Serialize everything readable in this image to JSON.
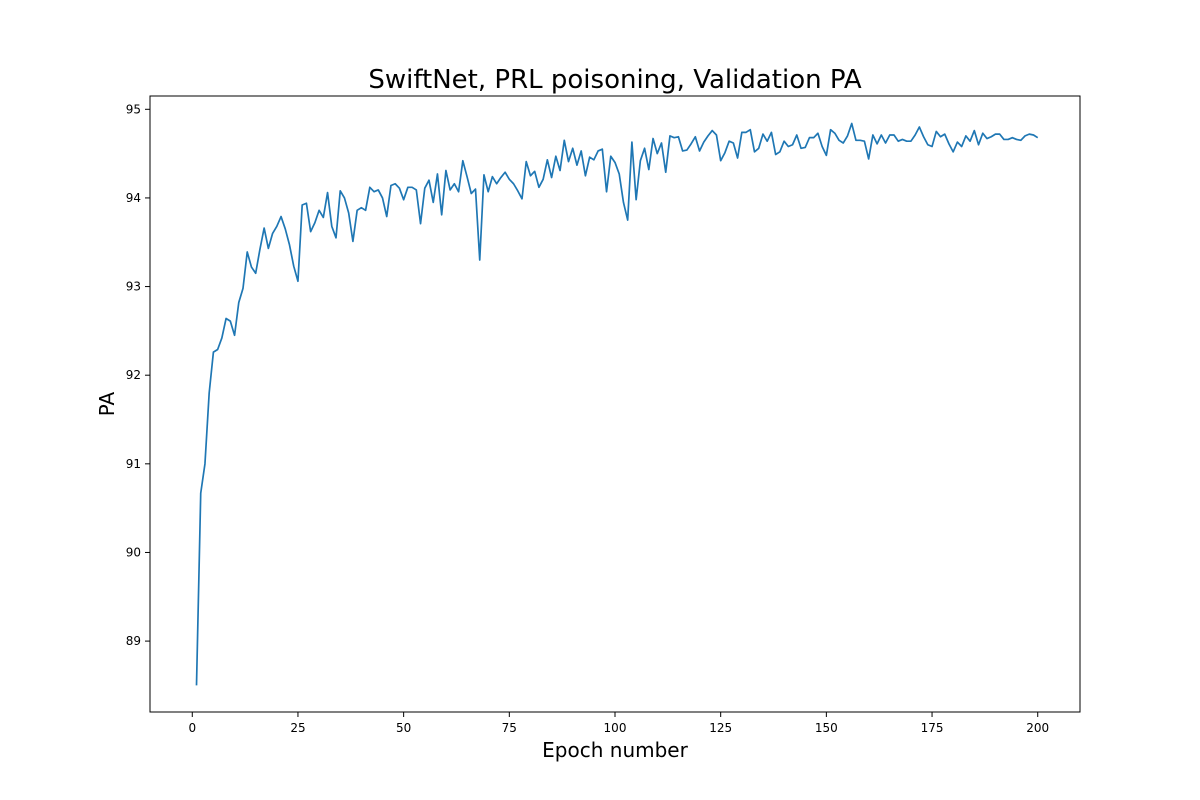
{
  "chart_data": {
    "type": "line",
    "title": "SwiftNet, PRL poisoning, Validation PA",
    "xlabel": "Epoch number",
    "ylabel": "PA",
    "xlim": [
      -10,
      210
    ],
    "ylim": [
      88.2,
      95.15
    ],
    "xticks": [
      0,
      25,
      50,
      75,
      100,
      125,
      150,
      175,
      200
    ],
    "yticks": [
      89,
      90,
      91,
      92,
      93,
      94,
      95
    ],
    "grid": false,
    "line_color": "#1f77b4",
    "series": [
      {
        "x": [
          1,
          2,
          3,
          4,
          5,
          6,
          7,
          8,
          9,
          10,
          11,
          12,
          13,
          14,
          15,
          16,
          17,
          18,
          19,
          20,
          21,
          22,
          23,
          24,
          25,
          26,
          27,
          28,
          29,
          30,
          31,
          32,
          33,
          34,
          35,
          36,
          37,
          38,
          39,
          40,
          41,
          42,
          43,
          44,
          45,
          46,
          47,
          48,
          49,
          50,
          51,
          52,
          53,
          54,
          55,
          56,
          57,
          58,
          59,
          60,
          61,
          62,
          63,
          64,
          65,
          66,
          67,
          68,
          69,
          70,
          71,
          72,
          73,
          74,
          75,
          76,
          77,
          78,
          79,
          80,
          81,
          82,
          83,
          84,
          85,
          86,
          87,
          88,
          89,
          90,
          91,
          92,
          93,
          94,
          95,
          96,
          97,
          98,
          99,
          100,
          101,
          102,
          103,
          104,
          105,
          106,
          107,
          108,
          109,
          110,
          111,
          112,
          113,
          114,
          115,
          116,
          117,
          118,
          119,
          120,
          121,
          122,
          123,
          124,
          125,
          126,
          127,
          128,
          129,
          130,
          131,
          132,
          133,
          134,
          135,
          136,
          137,
          138,
          139,
          140,
          141,
          142,
          143,
          144,
          145,
          146,
          147,
          148,
          149,
          150,
          151,
          152,
          153,
          154,
          155,
          156,
          157,
          158,
          159,
          160,
          161,
          162,
          163,
          164,
          165,
          166,
          167,
          168,
          169,
          170,
          171,
          172,
          173,
          174,
          175,
          176,
          177,
          178,
          179,
          180,
          181,
          182,
          183,
          184,
          185,
          186,
          187,
          188,
          189,
          190,
          191,
          192,
          193,
          194,
          195,
          196,
          197,
          198,
          199,
          200
        ],
        "y": [
          88.5,
          90.67,
          91.0,
          91.8,
          92.26,
          92.29,
          92.42,
          92.64,
          92.61,
          92.45,
          92.82,
          92.98,
          93.39,
          93.22,
          93.15,
          93.42,
          93.66,
          93.43,
          93.6,
          93.68,
          93.79,
          93.65,
          93.47,
          93.23,
          93.06,
          93.92,
          93.94,
          93.62,
          93.72,
          93.86,
          93.78,
          94.06,
          93.68,
          93.55,
          94.08,
          94.0,
          93.83,
          93.51,
          93.86,
          93.89,
          93.86,
          94.12,
          94.07,
          94.09,
          94.0,
          93.79,
          94.14,
          94.16,
          94.11,
          93.98,
          94.12,
          94.12,
          94.09,
          93.71,
          94.11,
          94.2,
          93.95,
          94.27,
          93.81,
          94.31,
          94.09,
          94.16,
          94.07,
          94.42,
          94.24,
          94.05,
          94.1,
          93.3,
          94.26,
          94.07,
          94.24,
          94.16,
          94.23,
          94.29,
          94.21,
          94.16,
          94.08,
          93.99,
          94.41,
          94.25,
          94.3,
          94.12,
          94.21,
          94.43,
          94.23,
          94.47,
          94.31,
          94.65,
          94.41,
          94.56,
          94.37,
          94.53,
          94.25,
          94.46,
          94.43,
          94.53,
          94.55,
          94.07,
          94.47,
          94.4,
          94.27,
          93.95,
          93.75,
          94.63,
          93.98,
          94.42,
          94.56,
          94.32,
          94.67,
          94.5,
          94.62,
          94.29,
          94.7,
          94.68,
          94.69,
          94.53,
          94.54,
          94.61,
          94.69,
          94.53,
          94.63,
          94.7,
          94.76,
          94.71,
          94.42,
          94.51,
          94.64,
          94.62,
          94.45,
          94.74,
          94.74,
          94.77,
          94.52,
          94.56,
          94.72,
          94.64,
          94.74,
          94.49,
          94.52,
          94.64,
          94.58,
          94.6,
          94.71,
          94.56,
          94.57,
          94.68,
          94.68,
          94.73,
          94.58,
          94.48,
          94.77,
          94.73,
          94.65,
          94.62,
          94.7,
          94.84,
          94.65,
          94.65,
          94.64,
          94.44,
          94.71,
          94.61,
          94.71,
          94.62,
          94.71,
          94.71,
          94.64,
          94.66,
          94.64,
          94.64,
          94.71,
          94.8,
          94.69,
          94.6,
          94.58,
          94.75,
          94.69,
          94.72,
          94.61,
          94.52,
          94.63,
          94.58,
          94.7,
          94.64,
          94.76,
          94.6,
          94.73,
          94.67,
          94.69,
          94.72,
          94.72,
          94.66,
          94.66,
          94.68,
          94.66,
          94.65,
          94.7,
          94.72,
          94.71,
          94.68
        ]
      }
    ]
  }
}
